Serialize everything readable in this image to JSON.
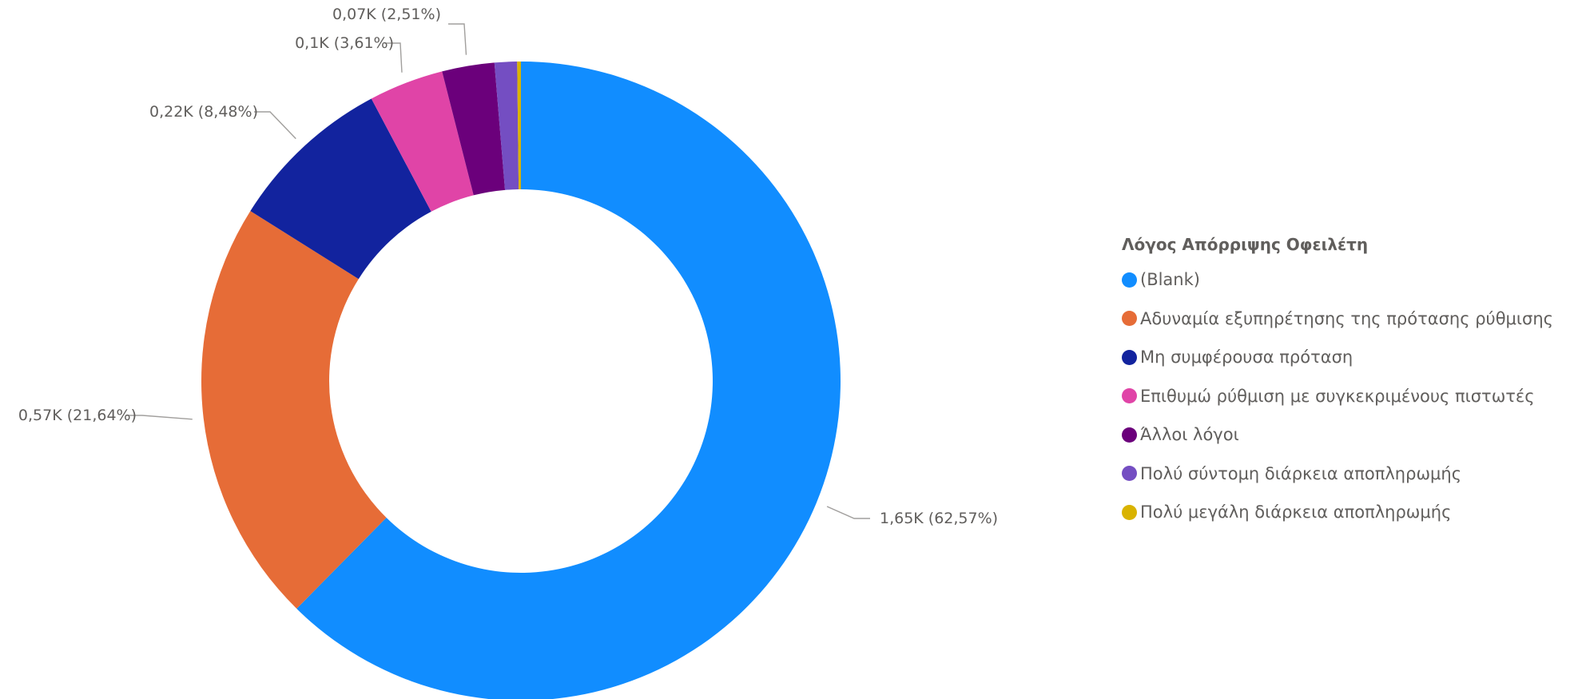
{
  "chart_data": {
    "type": "pie",
    "donut": true,
    "legend": {
      "title": "Λόγος Απόρριψης Οφειλέτη",
      "position": "right"
    },
    "slices": [
      {
        "name": "(Blank)",
        "value": 1650,
        "label": "1,65K (62,57%)",
        "color": "#118DFF"
      },
      {
        "name": "Αδυναμία εξυπηρέτησης της πρότασης ρύθμισης",
        "value": 570,
        "label": "0,57K (21,64%)",
        "color": "#E66C37"
      },
      {
        "name": "Μη συμφέρουσα πρόταση",
        "value": 220,
        "label": "0,22K (8,48%)",
        "color": "#12239E"
      },
      {
        "name": "Επιθυμώ ρύθμιση με συγκεκριμένους πιστωτές",
        "value": 100,
        "label": "0,1K (3,61%)",
        "color": "#E044A7"
      },
      {
        "name": "Άλλοι λόγοι",
        "value": 70,
        "label": "0,07K (2,51%)",
        "color": "#6B007B"
      },
      {
        "name": "Πολύ σύντομη διάρκεια αποπληρωμής",
        "value": 30,
        "label": "",
        "color": "#744EC2"
      },
      {
        "name": "Πολύ μεγάλη διάρκεια αποπληρωμής",
        "value": 5,
        "label": "",
        "color": "#D9B300"
      }
    ]
  }
}
